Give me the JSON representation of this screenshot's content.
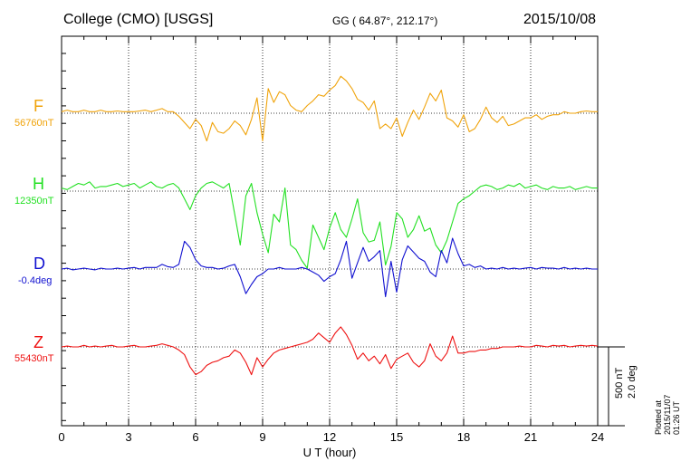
{
  "header": {
    "station": "College (CMO)  [USGS]",
    "coords": "GG ( 64.87°, 212.17°)",
    "date": "2015/10/08"
  },
  "footer_note": "Plotted at 2015/11/07 01:26 UT",
  "scale_bar": {
    "field": "500 nT",
    "angle": "2.0 deg"
  },
  "chart_data": {
    "type": "line",
    "title": "College (CMO)  [USGS]",
    "xlabel": "U T (hour)",
    "ylabel": "",
    "xlim": [
      0,
      24
    ],
    "xticks": [
      0,
      3,
      6,
      9,
      12,
      15,
      18,
      21,
      24
    ],
    "x_step_hours": 0.25,
    "grid": "dotted",
    "series": [
      {
        "name": "F",
        "baseline": "56760nT",
        "color": "#f0a30a",
        "values": [
          0.1,
          0.2,
          0.1,
          0.1,
          0.2,
          0.1,
          0.1,
          0.2,
          0.1,
          0.1,
          0.15,
          0.1,
          0.1,
          0.1,
          0.15,
          0.2,
          0.1,
          0.2,
          0.3,
          0.1,
          0.1,
          -0.2,
          -0.6,
          -1.0,
          -0.4,
          -0.8,
          -1.8,
          -0.6,
          -1.2,
          -1.3,
          -1.0,
          -0.5,
          -0.8,
          -1.4,
          -0.4,
          1.0,
          -1.8,
          1.6,
          0.7,
          1.4,
          1.2,
          0.5,
          0.2,
          0.1,
          0.5,
          0.8,
          1.2,
          1.1,
          1.5,
          1.8,
          2.4,
          2.1,
          1.6,
          0.9,
          0.7,
          0.2,
          0.8,
          -1.0,
          -0.7,
          -1.0,
          -0.3,
          -1.5,
          -0.6,
          0.2,
          -0.4,
          0.4,
          1.3,
          0.8,
          1.5,
          -0.3,
          -0.5,
          -0.9,
          -0.1,
          -1.2,
          -1.0,
          -0.4,
          0.4,
          -0.3,
          -0.6,
          -0.2,
          -0.8,
          -0.7,
          -0.5,
          -0.3,
          -0.3,
          -0.1,
          -0.4,
          -0.2,
          -0.1,
          -0.1,
          0.1,
          0.0,
          0.0,
          0.1,
          0.15,
          0.1,
          0.1
        ]
      },
      {
        "name": "H",
        "baseline": "12350nT",
        "color": "#22e022",
        "values": [
          0.2,
          0.1,
          0.3,
          0.5,
          0.4,
          0.6,
          0.2,
          0.3,
          0.3,
          0.4,
          0.5,
          0.3,
          0.4,
          0.5,
          0.2,
          0.4,
          0.6,
          0.3,
          0.2,
          0.4,
          0.5,
          0.2,
          -0.5,
          -1.2,
          -0.3,
          0.2,
          0.5,
          0.6,
          0.4,
          0.2,
          0.5,
          -1.5,
          -3.5,
          -0.3,
          0.5,
          -1.4,
          -2.8,
          -4.0,
          -1.5,
          -2.0,
          0.2,
          -3.5,
          -3.8,
          -4.5,
          -5.0,
          -2.2,
          -3.0,
          -3.8,
          -2.4,
          -1.4,
          -2.5,
          -3.0,
          -1.8,
          -0.5,
          -2.7,
          -3.3,
          -3.2,
          -2.0,
          -4.8,
          -3.6,
          -1.4,
          -1.8,
          -3.0,
          -2.5,
          -1.6,
          -2.6,
          -2.4,
          -3.5,
          -4.0,
          -3.2,
          -2.0,
          -0.8,
          -0.5,
          -0.3,
          0.0,
          0.3,
          0.4,
          0.3,
          0.1,
          0.2,
          0.4,
          0.3,
          0.5,
          0.2,
          0.3,
          0.4,
          0.2,
          0.1,
          0.3,
          0.2,
          0.2,
          0.3,
          0.1,
          0.2,
          0.3,
          0.2,
          0.2
        ]
      },
      {
        "name": "D",
        "baseline": "-0.4deg",
        "color": "#1010d0",
        "values": [
          0.0,
          0.05,
          -0.05,
          0.0,
          0.05,
          0.0,
          -0.05,
          0.05,
          0.0,
          0.0,
          0.05,
          0.0,
          0.05,
          0.1,
          0.0,
          0.1,
          0.1,
          0.1,
          0.3,
          0.15,
          0.1,
          0.3,
          1.8,
          1.4,
          0.6,
          0.2,
          0.1,
          0.1,
          0.0,
          0.05,
          0.2,
          0.3,
          -0.5,
          -1.6,
          -1.0,
          -0.5,
          -0.3,
          0.0,
          0.0,
          0.1,
          0.0,
          0.0,
          0.0,
          0.1,
          0.0,
          -0.2,
          -0.4,
          -0.8,
          -0.5,
          -0.3,
          0.6,
          1.8,
          -0.6,
          0.4,
          1.4,
          0.5,
          0.8,
          1.2,
          -1.8,
          0.5,
          -1.5,
          0.6,
          1.5,
          1.1,
          0.7,
          0.5,
          -0.2,
          -0.5,
          1.2,
          0.4,
          2.0,
          1.0,
          0.2,
          0.3,
          0.1,
          0.2,
          0.0,
          0.05,
          0.0,
          0.1,
          0.0,
          0.05,
          0.0,
          0.05,
          0.1,
          0.0,
          0.1,
          0.05,
          0.05,
          0.0,
          0.1,
          0.0,
          0.05,
          0.0,
          0.05,
          0.0,
          0.0
        ]
      },
      {
        "name": "Z",
        "baseline": "55430nT",
        "color": "#ee1111",
        "values": [
          0.0,
          0.05,
          0.0,
          0.0,
          0.1,
          0.0,
          0.05,
          0.0,
          0.05,
          0.1,
          0.0,
          0.0,
          0.05,
          0.1,
          0.0,
          0.0,
          0.05,
          0.1,
          0.2,
          0.1,
          0.0,
          -0.2,
          -0.5,
          -1.3,
          -1.8,
          -1.6,
          -1.2,
          -1.0,
          -0.9,
          -0.7,
          -0.6,
          -0.2,
          -0.4,
          -1.0,
          -1.8,
          -0.7,
          -1.3,
          -0.8,
          -0.4,
          -0.2,
          -0.1,
          0.0,
          0.1,
          0.2,
          0.3,
          0.5,
          0.9,
          0.6,
          0.3,
          0.9,
          1.3,
          0.8,
          0.1,
          -0.8,
          -0.4,
          -0.9,
          -0.6,
          -1.1,
          -0.5,
          -1.4,
          -0.8,
          -0.6,
          -0.4,
          -1.0,
          -1.3,
          -0.9,
          0.2,
          -0.6,
          -0.9,
          -0.4,
          0.7,
          -0.4,
          -0.4,
          -0.3,
          -0.3,
          -0.2,
          -0.2,
          -0.1,
          -0.1,
          0.0,
          0.0,
          0.0,
          0.05,
          0.0,
          0.0,
          0.1,
          0.05,
          0.0,
          0.1,
          0.05,
          0.1,
          0.0,
          0.05,
          0.1,
          0.05,
          0.1,
          0.05
        ]
      }
    ]
  }
}
